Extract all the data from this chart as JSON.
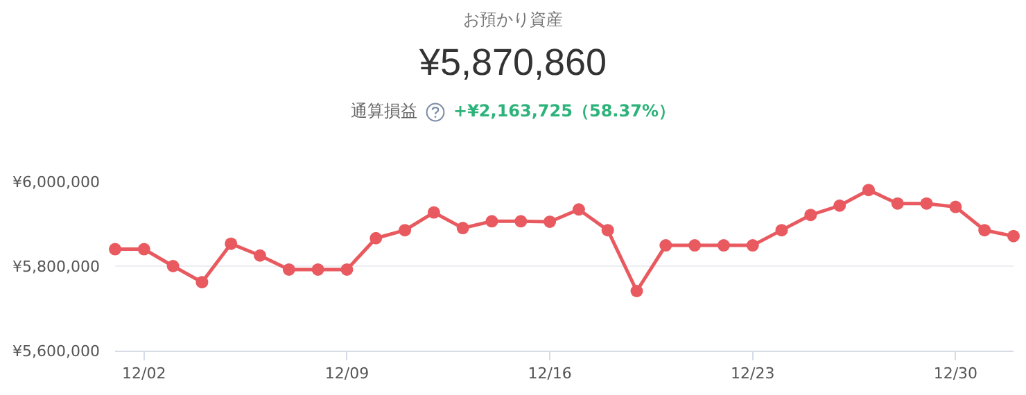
{
  "chart_data": {
    "type": "line",
    "title": "お預かり資産",
    "subtitle": "¥5,870,860",
    "annotations": [
      "通算損益",
      "+¥2,163,725（58.37%）"
    ],
    "categories": [
      null,
      "12/02",
      null,
      null,
      null,
      null,
      null,
      null,
      "12/09",
      null,
      null,
      null,
      null,
      null,
      null,
      "12/16",
      null,
      null,
      null,
      null,
      null,
      null,
      "12/23",
      null,
      null,
      null,
      null,
      null,
      null,
      "12/30",
      null,
      null
    ],
    "series": [
      {
        "color": "#e85a5f",
        "values": [
          5840000,
          5840000,
          5800000,
          5762000,
          5853000,
          5825000,
          5792000,
          5792000,
          5792000,
          5866000,
          5885000,
          5927000,
          5890000,
          5906000,
          5906000,
          5905000,
          5934000,
          5885000,
          5741000,
          5849000,
          5849000,
          5849000,
          5849000,
          5885000,
          5921000,
          5943000,
          5980000,
          5948000,
          5948000,
          5940000,
          5885000,
          5871000
        ]
      }
    ],
    "ylim": [
      5600000,
      6000000
    ],
    "yticks": [
      {
        "value": 5600000,
        "label": "¥5,600,000"
      },
      {
        "value": 5800000,
        "label": "¥5,800,000"
      },
      {
        "value": 6000000,
        "label": "¥6,000,000"
      }
    ],
    "grid": "y",
    "marker": "circle",
    "line_style": "solid"
  }
}
